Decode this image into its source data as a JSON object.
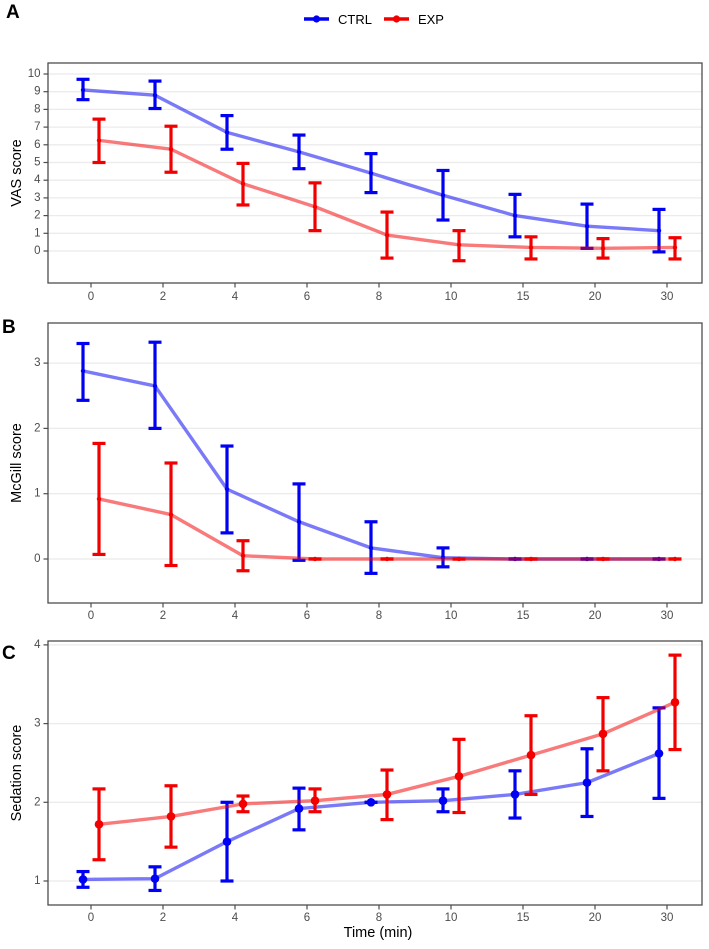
{
  "figure": {
    "x_title": "Time (min)",
    "background": "#ffffff",
    "grid_color": "#ebebeb",
    "border_color": "#4d4d4d",
    "tick_label_color": "#4d4d4d"
  },
  "legend": {
    "position": "top-center",
    "items": [
      {
        "label": "CTRL",
        "color": "#0000f2"
      },
      {
        "label": "EXP",
        "color": "#f20000"
      }
    ]
  },
  "chart_data": [
    {
      "type": "line",
      "panel_label": "A",
      "ylabel": "VAS score",
      "xlabel": "Time (min)",
      "x": [
        "0",
        "2",
        "4",
        "6",
        "8",
        "10",
        "15",
        "20",
        "30"
      ],
      "yticks": [
        0,
        1,
        2,
        3,
        4,
        5,
        6,
        7,
        8,
        9,
        10
      ],
      "ylim": [
        -1.8,
        10.6
      ],
      "grid": "horizontal-major",
      "legend_position": "top",
      "error_bars": true,
      "series": [
        {
          "name": "CTRL",
          "color": "#0000f2",
          "values": [
            9.1,
            8.8,
            6.7,
            5.6,
            4.4,
            3.15,
            2.0,
            1.4,
            1.15
          ],
          "err_low": [
            8.55,
            8.05,
            5.75,
            4.65,
            3.3,
            1.75,
            0.8,
            0.15,
            -0.05
          ],
          "err_high": [
            9.7,
            9.6,
            7.65,
            6.55,
            5.5,
            4.55,
            3.2,
            2.65,
            2.35
          ]
        },
        {
          "name": "EXP",
          "color": "#f20000",
          "values": [
            6.25,
            5.75,
            3.8,
            2.5,
            0.9,
            0.35,
            0.2,
            0.15,
            0.2
          ],
          "err_low": [
            5.0,
            4.45,
            2.6,
            1.15,
            -0.4,
            -0.55,
            -0.45,
            -0.4,
            -0.45
          ],
          "err_high": [
            7.45,
            7.05,
            4.95,
            3.85,
            2.2,
            1.15,
            0.8,
            0.7,
            0.75
          ]
        }
      ]
    },
    {
      "type": "line",
      "panel_label": "B",
      "ylabel": "McGill score",
      "xlabel": "Time (min)",
      "x": [
        "0",
        "2",
        "4",
        "6",
        "8",
        "10",
        "15",
        "20",
        "30"
      ],
      "yticks": [
        0,
        1,
        2,
        3
      ],
      "ylim": [
        -0.67,
        3.6
      ],
      "grid": "horizontal-major",
      "legend_position": "top",
      "error_bars": true,
      "series": [
        {
          "name": "CTRL",
          "color": "#0000f2",
          "values": [
            2.88,
            2.65,
            1.07,
            0.57,
            0.17,
            0.02,
            0,
            0,
            0
          ],
          "err_low": [
            2.43,
            2.0,
            0.4,
            -0.02,
            -0.22,
            -0.12,
            0,
            0,
            0
          ],
          "err_high": [
            3.3,
            3.32,
            1.73,
            1.15,
            0.57,
            0.17,
            0,
            0,
            0
          ]
        },
        {
          "name": "EXP",
          "color": "#f20000",
          "values": [
            0.92,
            0.68,
            0.05,
            0,
            0,
            0,
            0,
            0,
            0
          ],
          "err_low": [
            0.07,
            -0.1,
            -0.18,
            0,
            0,
            0,
            0,
            0,
            0
          ],
          "err_high": [
            1.77,
            1.47,
            0.28,
            0,
            0,
            0,
            0,
            0,
            0
          ]
        }
      ]
    },
    {
      "type": "line",
      "panel_label": "C",
      "ylabel": "Sedation score",
      "xlabel": "Time (min)",
      "x": [
        "0",
        "2",
        "4",
        "6",
        "8",
        "10",
        "15",
        "20",
        "30"
      ],
      "yticks": [
        1,
        2,
        3,
        4
      ],
      "ylim": [
        0.7,
        4.05
      ],
      "grid": "horizontal-major",
      "legend_position": "top",
      "error_bars": true,
      "series": [
        {
          "name": "CTRL",
          "color": "#0000f2",
          "values": [
            1.02,
            1.03,
            1.5,
            1.92,
            2.0,
            2.02,
            2.1,
            2.25,
            2.62
          ],
          "err_low": [
            0.92,
            0.88,
            1.0,
            1.65,
            2.0,
            1.88,
            1.8,
            1.82,
            2.05
          ],
          "err_high": [
            1.12,
            1.18,
            2.0,
            2.18,
            2.0,
            2.17,
            2.4,
            2.68,
            3.2
          ]
        },
        {
          "name": "EXP",
          "color": "#f20000",
          "values": [
            1.72,
            1.82,
            1.98,
            2.02,
            2.1,
            2.33,
            2.6,
            2.87,
            3.27
          ],
          "err_low": [
            1.27,
            1.43,
            1.88,
            1.88,
            1.78,
            1.87,
            2.1,
            2.4,
            2.67
          ],
          "err_high": [
            2.17,
            2.21,
            2.08,
            2.17,
            2.41,
            2.8,
            3.1,
            3.33,
            3.87
          ]
        }
      ]
    }
  ]
}
